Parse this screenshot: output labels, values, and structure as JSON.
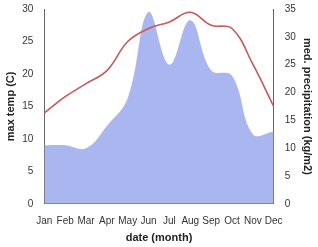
{
  "chart_data": {
    "type": "line",
    "x_label": "date (month)",
    "y_label": "max temp (C)",
    "y2_label": "med. precipitation (kg/m2)",
    "categories": [
      "Jan",
      "Feb",
      "Mar",
      "Apr",
      "May",
      "Jun",
      "Jul",
      "Aug",
      "Sep",
      "Oct",
      "Nov",
      "Dec"
    ],
    "series": [
      {
        "name": "max temp (C)",
        "type": "line",
        "color": "#c8585a",
        "values": [
          14,
          16.5,
          18.5,
          20.5,
          25,
          27,
          28,
          29.5,
          27.5,
          27,
          21.5,
          15
        ]
      },
      {
        "name": "med. precipitation (kg/m2)",
        "type": "area",
        "axis": "y2",
        "color": "#aab6f0",
        "values": [
          10.5,
          10.5,
          10,
          14,
          19,
          34.5,
          25,
          33,
          24,
          23,
          12.5,
          13
        ]
      }
    ],
    "ylim": [
      0,
      30
    ],
    "yticks": [
      0,
      5,
      10,
      15,
      20,
      25,
      30
    ],
    "y2lim": [
      0,
      35
    ],
    "y2ticks": [
      0,
      5,
      10,
      15,
      20,
      25,
      30,
      35
    ],
    "grid": false
  }
}
